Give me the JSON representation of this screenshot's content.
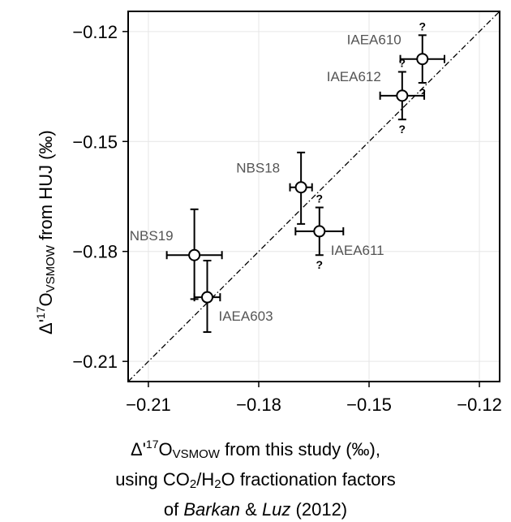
{
  "chart_data": {
    "type": "scatter",
    "xlabel": {
      "line1": [
        "Δ'",
        "17",
        "O",
        "VSMOW",
        " from this study (‰),"
      ],
      "line2": [
        "using CO",
        "2",
        "/H",
        "2",
        "O fractionation factors"
      ],
      "line3": [
        "of ",
        "Barkan",
        " & ",
        "Luz",
        " (2012)"
      ]
    },
    "ylabel": [
      "Δ'",
      "17",
      "O",
      "VSMOW",
      " from HUJ (‰)"
    ],
    "xlim": [
      -0.2155,
      -0.1145
    ],
    "ylim": [
      -0.2155,
      -0.1145
    ],
    "xticks": [
      -0.21,
      -0.18,
      -0.15,
      -0.12
    ],
    "yticks": [
      -0.21,
      -0.18,
      -0.15,
      -0.12
    ],
    "xtick_labels": [
      "−0.21",
      "−0.18",
      "−0.15",
      "−0.12"
    ],
    "ytick_labels": [
      "−0.21",
      "−0.18",
      "−0.15",
      "−0.12"
    ],
    "grid": true,
    "reference_line": "1:1",
    "points": [
      {
        "label": "IAEA610",
        "x": -0.1355,
        "y": -0.1275,
        "xerr": 0.006,
        "yerr": [
          0.0065,
          0.0065
        ],
        "question": "?",
        "label_pos": "upper-left"
      },
      {
        "label": "IAEA612",
        "x": -0.141,
        "y": -0.1375,
        "xerr": 0.006,
        "yerr": [
          0.0065,
          0.0065
        ],
        "question": "?",
        "label_pos": "upper-left"
      },
      {
        "label": "NBS18",
        "x": -0.1685,
        "y": -0.1625,
        "xerr": 0.003,
        "yerr": [
          0.01,
          0.0095
        ],
        "question": "",
        "label_pos": "upper-left"
      },
      {
        "label": "IAEA611",
        "x": -0.1635,
        "y": -0.1745,
        "xerr": 0.0065,
        "yerr": [
          0.0065,
          0.0065
        ],
        "question": "?",
        "label_pos": "lower-right"
      },
      {
        "label": "NBS19",
        "x": -0.1975,
        "y": -0.181,
        "xerr": 0.0075,
        "yerr": [
          0.012,
          0.0125
        ],
        "question": "",
        "label_pos": "upper-left"
      },
      {
        "label": "IAEA603",
        "x": -0.194,
        "y": -0.1925,
        "xerr": 0.0035,
        "yerr": [
          0.0095,
          0.01
        ],
        "question": "",
        "label_pos": "lower-right"
      }
    ]
  }
}
